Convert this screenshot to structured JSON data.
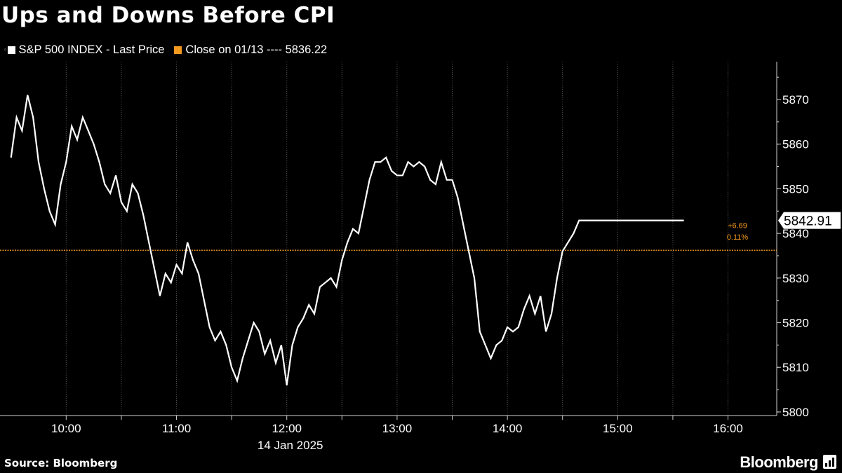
{
  "title": "Ups and Downs Before CPI",
  "legend": [
    {
      "label": "S&P 500 INDEX - Last Price",
      "color": "#ffffff"
    },
    {
      "label": "Close on 01/13 ---- 5836.22",
      "color": "#f39a1e"
    }
  ],
  "footer": {
    "source": "Source: Bloomberg",
    "brand": "Bloomberg"
  },
  "chart_data": {
    "type": "line",
    "series": [
      {
        "name": "S&P 500 INDEX - Last Price",
        "x_minutes_from_0930": [
          0,
          3,
          6,
          9,
          12,
          15,
          18,
          21,
          24,
          27,
          30,
          33,
          36,
          39,
          42,
          45,
          48,
          51,
          54,
          57,
          60,
          63,
          66,
          69,
          72,
          75,
          78,
          81,
          84,
          87,
          90,
          93,
          96,
          99,
          102,
          105,
          108,
          111,
          114,
          117,
          120,
          123,
          126,
          129,
          132,
          135,
          138,
          141,
          144,
          147,
          150,
          153,
          156,
          159,
          162,
          165,
          168,
          171,
          174,
          177,
          180,
          183,
          186,
          189,
          192,
          195,
          198,
          201,
          204,
          207,
          210,
          213,
          216,
          219,
          222,
          225,
          228,
          231,
          234,
          237,
          240,
          243,
          246,
          249,
          252,
          255,
          258,
          261,
          264,
          267,
          270,
          273,
          276,
          279,
          282,
          285,
          288,
          291,
          294,
          297,
          300,
          303,
          306,
          309,
          312,
          315,
          318,
          321,
          324,
          327,
          330,
          333,
          336,
          339,
          342,
          345,
          348,
          351,
          354,
          357,
          360,
          363,
          366,
          369,
          381
        ],
        "values": [
          5857,
          5866,
          5863,
          5871,
          5866,
          5856,
          5850,
          5845,
          5842,
          5851,
          5856,
          5864,
          5861,
          5866,
          5863,
          5860,
          5856,
          5851,
          5849,
          5853,
          5847,
          5845,
          5851,
          5849,
          5844,
          5838,
          5832,
          5826,
          5831,
          5829,
          5833,
          5831,
          5838,
          5834,
          5831,
          5825,
          5819,
          5816,
          5818,
          5815,
          5810,
          5807,
          5812,
          5816,
          5820,
          5818,
          5813,
          5816,
          5811,
          5815,
          5806,
          5815,
          5819,
          5821,
          5824,
          5822,
          5828,
          5829,
          5830,
          5828,
          5834,
          5838,
          5841,
          5840,
          5846,
          5852,
          5856,
          5856,
          5857,
          5854,
          5853,
          5853,
          5856,
          5855,
          5856,
          5855,
          5852,
          5851,
          5856,
          5852,
          5852,
          5848,
          5842,
          5836,
          5830,
          5818,
          5815,
          5812,
          5815,
          5816,
          5819,
          5818,
          5819,
          5823,
          5826,
          5822,
          5826,
          5818,
          5822,
          5830,
          5836,
          5838,
          5840,
          5842.91,
          5842.91,
          5842.91,
          5842.91,
          5842.91,
          5842.91,
          5842.91,
          5842.91,
          5842.91,
          5842.91,
          5842.91,
          5842.91,
          5842.91,
          5842.91,
          5842.91,
          5842.91,
          5842.91,
          5842.91,
          5842.91,
          5842.91
        ],
        "last_value": "5842.91",
        "change": "+6.69",
        "change_pct": "0.11%"
      }
    ],
    "reference_line": {
      "label": "Close on 01/13",
      "value": 5836.22,
      "color": "#f39a1e"
    },
    "x_ticks": [
      "10:00",
      "11:00",
      "12:00",
      "13:00",
      "14:00",
      "15:00",
      "16:00"
    ],
    "x_date_label": "14 Jan 2025",
    "y_ticks": [
      5800,
      5810,
      5820,
      5830,
      5840,
      5850,
      5860,
      5870
    ],
    "ylim": [
      5797,
      5878
    ],
    "line_color": "#ffffff",
    "grid": "vertical dotted"
  }
}
